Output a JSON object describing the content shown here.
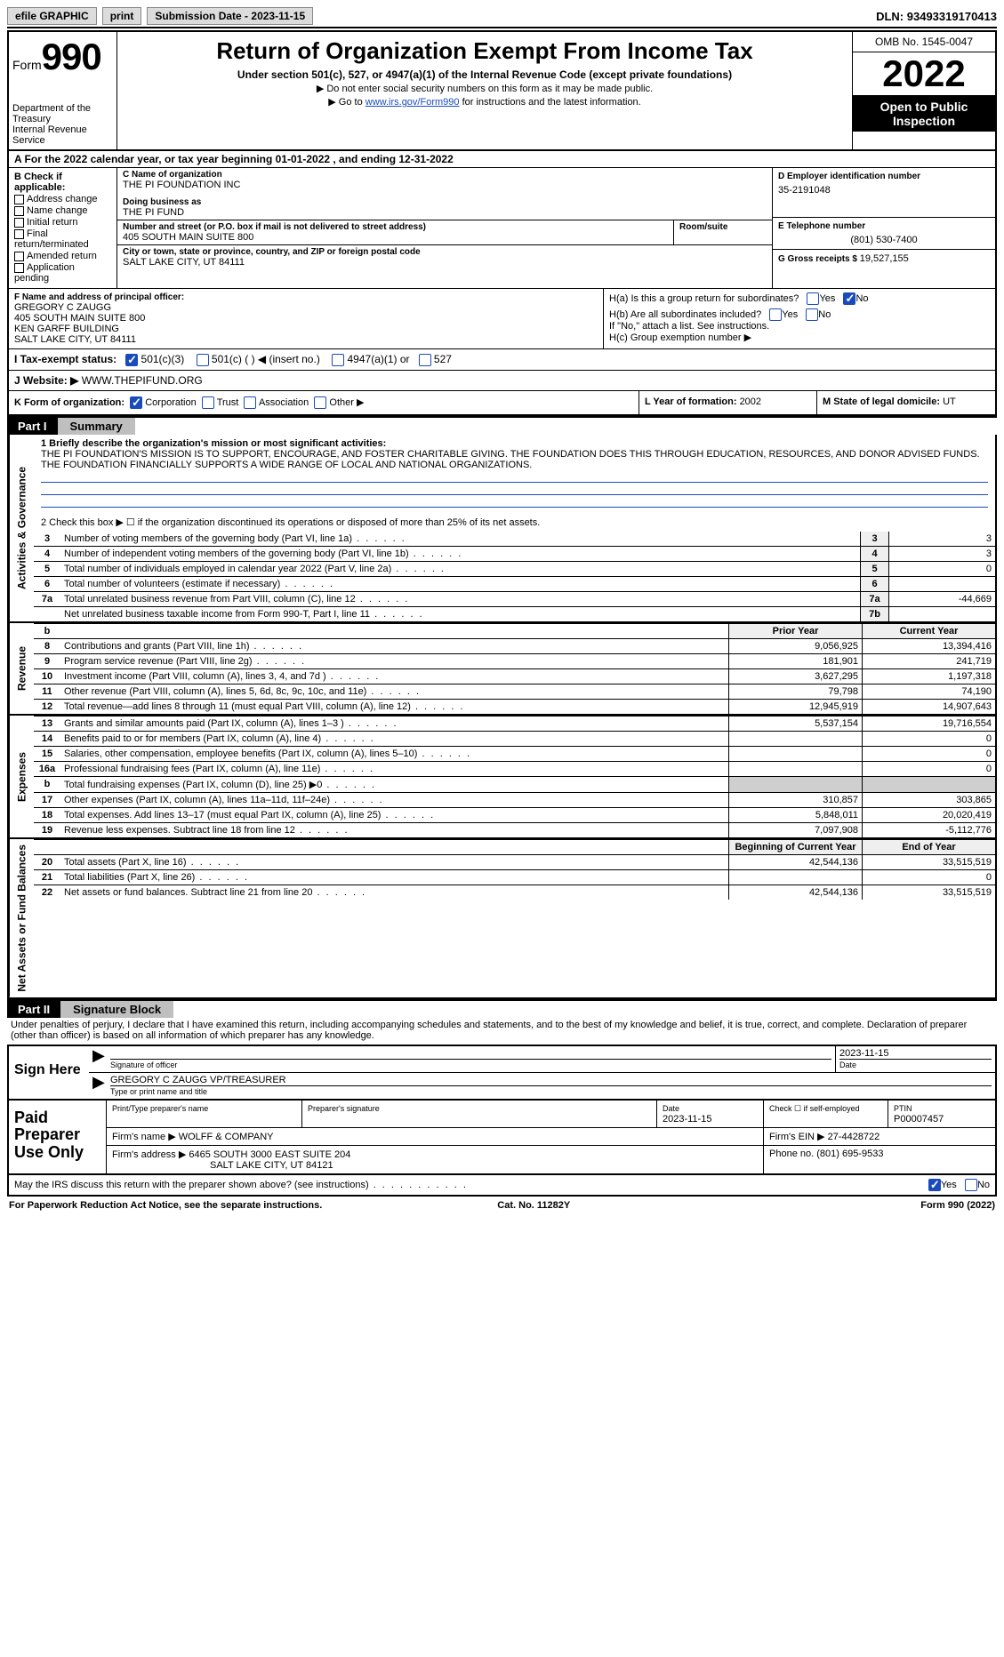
{
  "topbar": {
    "efile": "efile GRAPHIC",
    "print": "print",
    "sub_label": "Submission Date - ",
    "sub_date": "2023-11-15",
    "dln_label": "DLN: ",
    "dln": "93493319170413"
  },
  "header": {
    "form_word": "Form",
    "form_num": "990",
    "dept1": "Department of the Treasury",
    "dept2": "Internal Revenue Service",
    "title": "Return of Organization Exempt From Income Tax",
    "sub": "Under section 501(c), 527, or 4947(a)(1) of the Internal Revenue Code (except private foundations)",
    "note1": "▶ Do not enter social security numbers on this form as it may be made public.",
    "note2_pre": "▶ Go to ",
    "note2_link": "www.irs.gov/Form990",
    "note2_post": " for instructions and the latest information.",
    "omb": "OMB No. 1545-0047",
    "year": "2022",
    "open": "Open to Public Inspection"
  },
  "A": {
    "text": "A For the 2022 calendar year, or tax year beginning 01-01-2022   , and ending 12-31-2022"
  },
  "B": {
    "hdr": "B Check if applicable:",
    "items": [
      "Address change",
      "Name change",
      "Initial return",
      "Final return/terminated",
      "Amended return",
      "Application pending"
    ]
  },
  "C": {
    "name_lbl": "C Name of organization",
    "name": "THE PI FOUNDATION INC",
    "dba_lbl": "Doing business as",
    "dba": "THE PI FUND",
    "addr_lbl": "Number and street (or P.O. box if mail is not delivered to street address)",
    "addr": "405 SOUTH MAIN SUITE 800",
    "room_lbl": "Room/suite",
    "city_lbl": "City or town, state or province, country, and ZIP or foreign postal code",
    "city": "SALT LAKE CITY, UT  84111"
  },
  "D": {
    "ein_lbl": "D Employer identification number",
    "ein": "35-2191048",
    "tel_lbl": "E Telephone number",
    "tel": "(801) 530-7400",
    "gross_lbl": "G Gross receipts $ ",
    "gross": "19,527,155"
  },
  "F": {
    "lbl": "F  Name and address of principal officer:",
    "l1": "GREGORY C ZAUGG",
    "l2": "405 SOUTH MAIN SUITE 800",
    "l3": "KEN GARFF BUILDING",
    "l4": "SALT LAKE CITY, UT  84111"
  },
  "H": {
    "a": "H(a)  Is this a group return for subordinates?",
    "b": "H(b)  Are all subordinates included?",
    "b2": "If \"No,\" attach a list. See instructions.",
    "c": "H(c)  Group exemption number ▶",
    "yes": "Yes",
    "no": "No"
  },
  "I": {
    "lbl": "I    Tax-exempt status:",
    "o1": "501(c)(3)",
    "o2": "501(c) (  ) ◀ (insert no.)",
    "o3": "4947(a)(1) or",
    "o4": "527"
  },
  "J": {
    "lbl": "J   Website: ▶",
    "val": " WWW.THEPIFUND.ORG"
  },
  "K": {
    "lbl": "K Form of organization:",
    "o1": "Corporation",
    "o2": "Trust",
    "o3": "Association",
    "o4": "Other ▶",
    "L_lbl": "L Year of formation: ",
    "L": "2002",
    "M_lbl": "M State of legal domicile: ",
    "M": "UT"
  },
  "partI": {
    "num": "Part I",
    "title": "Summary",
    "q1": "1   Briefly describe the organization's mission or most significant activities:",
    "mission": "THE PI FOUNDATION'S MISSION IS TO SUPPORT, ENCOURAGE, AND FOSTER CHARITABLE GIVING. THE FOUNDATION DOES THIS THROUGH EDUCATION, RESOURCES, AND DONOR ADVISED FUNDS. THE FOUNDATION FINANCIALLY SUPPORTS A WIDE RANGE OF LOCAL AND NATIONAL ORGANIZATIONS.",
    "q2": "2   Check this box ▶ ☐  if the organization discontinued its operations or disposed of more than 25% of its net assets.",
    "side_gov": "Activities & Governance",
    "side_rev": "Revenue",
    "side_exp": "Expenses",
    "side_net": "Net Assets or Fund Balances",
    "lines_gov": [
      {
        "n": "3",
        "t": "Number of voting members of the governing body (Part VI, line 1a)",
        "b": "3",
        "v": "3"
      },
      {
        "n": "4",
        "t": "Number of independent voting members of the governing body (Part VI, line 1b)",
        "b": "4",
        "v": "3"
      },
      {
        "n": "5",
        "t": "Total number of individuals employed in calendar year 2022 (Part V, line 2a)",
        "b": "5",
        "v": "0"
      },
      {
        "n": "6",
        "t": "Total number of volunteers (estimate if necessary)",
        "b": "6",
        "v": ""
      },
      {
        "n": "7a",
        "t": "Total unrelated business revenue from Part VIII, column (C), line 12",
        "b": "7a",
        "v": "-44,669"
      },
      {
        "n": "",
        "t": "Net unrelated business taxable income from Form 990-T, Part I, line 11",
        "b": "7b",
        "v": ""
      }
    ],
    "hdr_prior": "Prior Year",
    "hdr_curr": "Current Year",
    "lines_rev": [
      {
        "n": "8",
        "t": "Contributions and grants (Part VIII, line 1h)",
        "py": "9,056,925",
        "cy": "13,394,416"
      },
      {
        "n": "9",
        "t": "Program service revenue (Part VIII, line 2g)",
        "py": "181,901",
        "cy": "241,719"
      },
      {
        "n": "10",
        "t": "Investment income (Part VIII, column (A), lines 3, 4, and 7d )",
        "py": "3,627,295",
        "cy": "1,197,318"
      },
      {
        "n": "11",
        "t": "Other revenue (Part VIII, column (A), lines 5, 6d, 8c, 9c, 10c, and 11e)",
        "py": "79,798",
        "cy": "74,190"
      },
      {
        "n": "12",
        "t": "Total revenue—add lines 8 through 11 (must equal Part VIII, column (A), line 12)",
        "py": "12,945,919",
        "cy": "14,907,643"
      }
    ],
    "lines_exp": [
      {
        "n": "13",
        "t": "Grants and similar amounts paid (Part IX, column (A), lines 1–3 )",
        "py": "5,537,154",
        "cy": "19,716,554"
      },
      {
        "n": "14",
        "t": "Benefits paid to or for members (Part IX, column (A), line 4)",
        "py": "",
        "cy": "0"
      },
      {
        "n": "15",
        "t": "Salaries, other compensation, employee benefits (Part IX, column (A), lines 5–10)",
        "py": "",
        "cy": "0"
      },
      {
        "n": "16a",
        "t": "Professional fundraising fees (Part IX, column (A), line 11e)",
        "py": "",
        "cy": "0"
      },
      {
        "n": "b",
        "t": "Total fundraising expenses (Part IX, column (D), line 25) ▶0",
        "py": "SHADE",
        "cy": "SHADE"
      },
      {
        "n": "17",
        "t": "Other expenses (Part IX, column (A), lines 11a–11d, 11f–24e)",
        "py": "310,857",
        "cy": "303,865"
      },
      {
        "n": "18",
        "t": "Total expenses. Add lines 13–17 (must equal Part IX, column (A), line 25)",
        "py": "5,848,011",
        "cy": "20,020,419"
      },
      {
        "n": "19",
        "t": "Revenue less expenses. Subtract line 18 from line 12",
        "py": "7,097,908",
        "cy": "-5,112,776"
      }
    ],
    "hdr_boy": "Beginning of Current Year",
    "hdr_eoy": "End of Year",
    "lines_net": [
      {
        "n": "20",
        "t": "Total assets (Part X, line 16)",
        "py": "42,544,136",
        "cy": "33,515,519"
      },
      {
        "n": "21",
        "t": "Total liabilities (Part X, line 26)",
        "py": "",
        "cy": "0"
      },
      {
        "n": "22",
        "t": "Net assets or fund balances. Subtract line 21 from line 20",
        "py": "42,544,136",
        "cy": "33,515,519"
      }
    ]
  },
  "partII": {
    "num": "Part II",
    "title": "Signature Block",
    "decl": "Under penalties of perjury, I declare that I have examined this return, including accompanying schedules and statements, and to the best of my knowledge and belief, it is true, correct, and complete. Declaration of preparer (other than officer) is based on all information of which preparer has any knowledge.",
    "sign_here": "Sign Here",
    "sig_of": "Signature of officer",
    "date": "Date",
    "date_v": "2023-11-15",
    "name_title": "GREGORY C ZAUGG  VP/TREASURER",
    "type_name": "Type or print name and title",
    "paid": "Paid Preparer Use Only",
    "pt_name_lbl": "Print/Type preparer's name",
    "pt_sig_lbl": "Preparer's signature",
    "pt_date": "2023-11-15",
    "pt_check": "Check ☐ if self-employed",
    "ptin_lbl": "PTIN",
    "ptin": "P00007457",
    "firm_name_lbl": "Firm's name    ▶ ",
    "firm_name": "WOLFF & COMPANY",
    "firm_ein_lbl": "Firm's EIN ▶ ",
    "firm_ein": "27-4428722",
    "firm_addr_lbl": "Firm's address ▶ ",
    "firm_addr1": "6465 SOUTH 3000 EAST SUITE 204",
    "firm_addr2": "SALT LAKE CITY, UT  84121",
    "phone_lbl": "Phone no. ",
    "phone": "(801) 695-9533",
    "may": "May the IRS discuss this return with the preparer shown above? (see instructions)",
    "yes": "Yes",
    "no": "No"
  },
  "footer": {
    "left": "For Paperwork Reduction Act Notice, see the separate instructions.",
    "mid": "Cat. No. 11282Y",
    "right": "Form 990 (2022)"
  }
}
